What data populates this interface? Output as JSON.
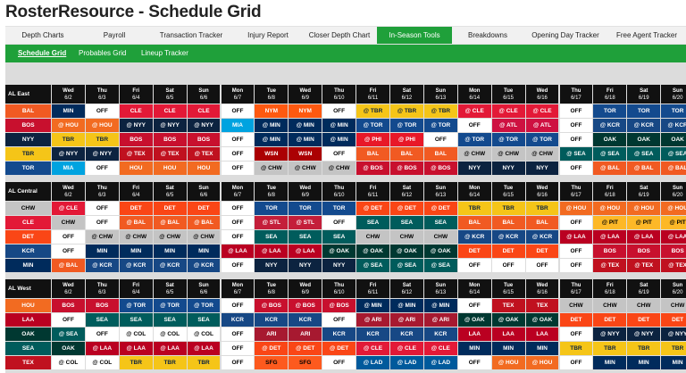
{
  "title": "RosterResource - Schedule Grid",
  "nav_primary": [
    {
      "label": "Depth Charts",
      "active": false
    },
    {
      "label": "Payroll",
      "active": false
    },
    {
      "label": "Transaction Tracker",
      "active": false
    },
    {
      "label": "Injury Report",
      "active": false
    },
    {
      "label": "Closer Depth Chart",
      "active": false
    },
    {
      "label": "In-Season Tools",
      "active": true
    },
    {
      "label": "Breakdowns",
      "active": false
    },
    {
      "label": "Opening Day Tracker",
      "active": false
    },
    {
      "label": "Free Agent Tracker",
      "active": false
    }
  ],
  "nav_secondary": [
    {
      "label": "Schedule Grid",
      "active": true
    },
    {
      "label": "Probables Grid",
      "active": false
    },
    {
      "label": "Lineup Tracker",
      "active": false
    }
  ],
  "days": [
    {
      "dow": "Wed",
      "date": "6/2"
    },
    {
      "dow": "Thu",
      "date": "6/3"
    },
    {
      "dow": "Fri",
      "date": "6/4"
    },
    {
      "dow": "Sat",
      "date": "6/5"
    },
    {
      "dow": "Sun",
      "date": "6/6"
    },
    {
      "dow": "Mon",
      "date": "6/7"
    },
    {
      "dow": "Tue",
      "date": "6/8"
    },
    {
      "dow": "Wed",
      "date": "6/9"
    },
    {
      "dow": "Thu",
      "date": "6/10"
    },
    {
      "dow": "Fri",
      "date": "6/11"
    },
    {
      "dow": "Sat",
      "date": "6/12"
    },
    {
      "dow": "Sun",
      "date": "6/13"
    },
    {
      "dow": "Mon",
      "date": "6/14"
    },
    {
      "dow": "Tue",
      "date": "6/15"
    },
    {
      "dow": "Wed",
      "date": "6/16"
    },
    {
      "dow": "Thu",
      "date": "6/17"
    },
    {
      "dow": "Fri",
      "date": "6/18"
    },
    {
      "dow": "Sat",
      "date": "6/19"
    },
    {
      "dow": "Sun",
      "date": "6/20"
    }
  ],
  "team_colors": {
    "BAL": {
      "bg": "#f15a22",
      "fg": "#ffffff"
    },
    "BOS": {
      "bg": "#c8102e",
      "fg": "#ffffff"
    },
    "NYY": {
      "bg": "#0c2340",
      "fg": "#ffffff"
    },
    "TBR": {
      "bg": "#f5c518",
      "fg": "#0a2240"
    },
    "TOR": {
      "bg": "#134a8e",
      "fg": "#ffffff"
    },
    "CHW": {
      "bg": "#c4c4c4",
      "fg": "#000000"
    },
    "CLE": {
      "bg": "#e31937",
      "fg": "#ffffff"
    },
    "DET": {
      "bg": "#fa4616",
      "fg": "#ffffff"
    },
    "KCR": {
      "bg": "#174885",
      "fg": "#ffffff"
    },
    "MIN": {
      "bg": "#002b5c",
      "fg": "#ffffff"
    },
    "HOU": {
      "bg": "#f26b21",
      "fg": "#ffffff"
    },
    "LAA": {
      "bg": "#ba0021",
      "fg": "#ffffff"
    },
    "OAK": {
      "bg": "#003831",
      "fg": "#ffffff"
    },
    "SEA": {
      "bg": "#005c5c",
      "fg": "#ffffff"
    },
    "TEX": {
      "bg": "#c0111f",
      "fg": "#ffffff"
    },
    "MIA": {
      "bg": "#00a3e0",
      "fg": "#ffffff"
    },
    "NYM": {
      "bg": "#ff5910",
      "fg": "#ffffff"
    },
    "WSN": {
      "bg": "#ab0003",
      "fg": "#ffffff"
    },
    "PHI": {
      "bg": "#e81828",
      "fg": "#ffffff"
    },
    "ATL": {
      "bg": "#ce1141",
      "fg": "#ffffff"
    },
    "STL": {
      "bg": "#c41e3a",
      "fg": "#ffffff"
    },
    "PIT": {
      "bg": "#fdb827",
      "fg": "#000000"
    },
    "ARI": {
      "bg": "#a71930",
      "fg": "#ffffff"
    },
    "LAD": {
      "bg": "#005a9c",
      "fg": "#ffffff"
    },
    "SFG": {
      "bg": "#fd5a1e",
      "fg": "#000000"
    },
    "OFF": {
      "bg": "#ffffff",
      "fg": "#000000"
    }
  },
  "divisions": [
    {
      "name": "AL East",
      "rows": [
        {
          "team": "BAL",
          "games": [
            "MIN",
            "OFF",
            "CLE",
            "CLE",
            "CLE",
            "OFF",
            "NYM",
            "NYM",
            "OFF",
            "@ TBR",
            "@ TBR",
            "@ TBR",
            "@ CLE",
            "@ CLE",
            "@ CLE",
            "OFF",
            "TOR",
            "TOR",
            "TOR"
          ]
        },
        {
          "team": "BOS",
          "games": [
            "@ HOU",
            "@ HOU",
            "@ NYY",
            "@ NYY",
            "@ NYY",
            "MIA",
            "@ MIN",
            "@ MIN",
            "@ MIN",
            "@ TOR",
            "@ TOR",
            "@ TOR",
            "OFF",
            "@ ATL",
            "@ ATL",
            "OFF",
            "@ KCR",
            "@ KCR",
            "@ KCR"
          ]
        },
        {
          "team": "NYY",
          "games": [
            "TBR",
            "TBR",
            "BOS",
            "BOS",
            "BOS",
            "OFF",
            "@ MIN",
            "@ MIN",
            "@ MIN",
            "@ PHI",
            "@ PHI",
            "OFF",
            "@ TOR",
            "@ TOR",
            "@ TOR",
            "OFF",
            "OAK",
            "OAK",
            "OAK"
          ]
        },
        {
          "team": "TBR",
          "games": [
            "@ NYY",
            "@ NYY",
            "@ TEX",
            "@ TEX",
            "@ TEX",
            "OFF",
            "WSN",
            "WSN",
            "OFF",
            "BAL",
            "BAL",
            "BAL",
            "@ CHW",
            "@ CHW",
            "@ CHW",
            "@ SEA",
            "@ SEA",
            "@ SEA",
            "@ SEA"
          ]
        },
        {
          "team": "TOR",
          "games": [
            "MIA",
            "OFF",
            "HOU",
            "HOU",
            "HOU",
            "OFF",
            "@ CHW",
            "@ CHW",
            "@ CHW",
            "@ BOS",
            "@ BOS",
            "@ BOS",
            "NYY",
            "NYY",
            "NYY",
            "OFF",
            "@ BAL",
            "@ BAL",
            "@ BAL"
          ]
        }
      ]
    },
    {
      "name": "AL Central",
      "rows": [
        {
          "team": "CHW",
          "games": [
            "@ CLE",
            "OFF",
            "DET",
            "DET",
            "DET",
            "OFF",
            "TOR",
            "TOR",
            "TOR",
            "@ DET",
            "@ DET",
            "@ DET",
            "TBR",
            "TBR",
            "TBR",
            "@ HOU",
            "@ HOU",
            "@ HOU",
            "@ HOU"
          ]
        },
        {
          "team": "CLE",
          "games": [
            "CHW",
            "OFF",
            "@ BAL",
            "@ BAL",
            "@ BAL",
            "OFF",
            "@ STL",
            "@ STL",
            "OFF",
            "SEA",
            "SEA",
            "SEA",
            "BAL",
            "BAL",
            "BAL",
            "OFF",
            "@ PIT",
            "@ PIT",
            "@ PIT"
          ]
        },
        {
          "team": "DET",
          "games": [
            "OFF",
            "@ CHW",
            "@ CHW",
            "@ CHW",
            "@ CHW",
            "OFF",
            "SEA",
            "SEA",
            "SEA",
            "CHW",
            "CHW",
            "CHW",
            "@ KCR",
            "@ KCR",
            "@ KCR",
            "@ LAA",
            "@ LAA",
            "@ LAA",
            "@ LAA"
          ]
        },
        {
          "team": "KCR",
          "games": [
            "OFF",
            "MIN",
            "MIN",
            "MIN",
            "MIN",
            "@ LAA",
            "@ LAA",
            "@ LAA",
            "@ OAK",
            "@ OAK",
            "@ OAK",
            "@ OAK",
            "DET",
            "DET",
            "DET",
            "OFF",
            "BOS",
            "BOS",
            "BOS"
          ]
        },
        {
          "team": "MIN",
          "games": [
            "@ BAL",
            "@ KCR",
            "@ KCR",
            "@ KCR",
            "@ KCR",
            "OFF",
            "NYY",
            "NYY",
            "NYY",
            "@ SEA",
            "@ SEA",
            "@ SEA",
            "OFF",
            "OFF",
            "OFF",
            "OFF",
            "@ TEX",
            "@ TEX",
            "@ TEX"
          ]
        }
      ]
    },
    {
      "name": "AL West",
      "rows": [
        {
          "team": "HOU",
          "games": [
            "BOS",
            "BOS",
            "@ TOR",
            "@ TOR",
            "@ TOR",
            "OFF",
            "@ BOS",
            "@ BOS",
            "@ BOS",
            "@ MIN",
            "@ MIN",
            "@ MIN",
            "OFF",
            "TEX",
            "TEX",
            "CHW",
            "CHW",
            "CHW",
            "CHW"
          ]
        },
        {
          "team": "LAA",
          "games": [
            "OFF",
            "SEA",
            "SEA",
            "SEA",
            "SEA",
            "KCR",
            "KCR",
            "KCR",
            "OFF",
            "@ ARI",
            "@ ARI",
            "@ ARI",
            "@ OAK",
            "@ OAK",
            "@ OAK",
            "DET",
            "DET",
            "DET",
            "DET"
          ]
        },
        {
          "team": "OAK",
          "games": [
            "@ SEA",
            "OFF",
            "@ COL",
            "@ COL",
            "@ COL",
            "OFF",
            "ARI",
            "ARI",
            "KCR",
            "KCR",
            "KCR",
            "KCR",
            "LAA",
            "LAA",
            "LAA",
            "OFF",
            "@ NYY",
            "@ NYY",
            "@ NYY"
          ]
        },
        {
          "team": "SEA",
          "games": [
            "OAK",
            "@ LAA",
            "@ LAA",
            "@ LAA",
            "@ LAA",
            "OFF",
            "@ DET",
            "@ DET",
            "@ DET",
            "@ CLE",
            "@ CLE",
            "@ CLE",
            "MIN",
            "MIN",
            "MIN",
            "TBR",
            "TBR",
            "TBR",
            "TBR"
          ]
        },
        {
          "team": "TEX",
          "games": [
            "@ COL",
            "@ COL",
            "TBR",
            "TBR",
            "TBR",
            "OFF",
            "SFG",
            "SFG",
            "OFF",
            "@ LAD",
            "@ LAD",
            "@ LAD",
            "OFF",
            "@ HOU",
            "@ HOU",
            "OFF",
            "MIN",
            "MIN",
            "MIN"
          ]
        }
      ]
    }
  ]
}
